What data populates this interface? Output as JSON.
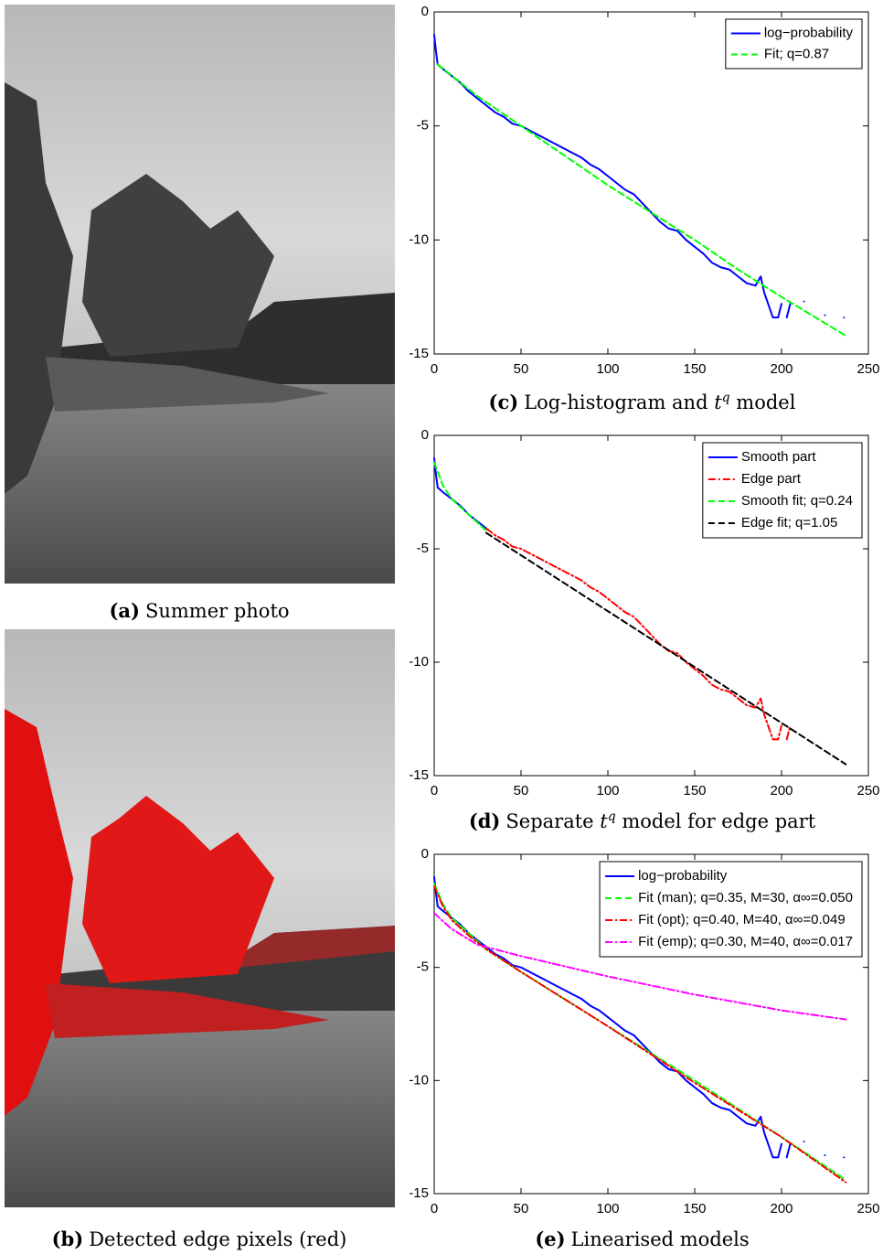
{
  "figures": [
    {
      "label": "(a)",
      "text": "Summer photo"
    },
    {
      "label": "(b)",
      "text": "Detected edge pixels (red)"
    }
  ],
  "chart_data": [
    {
      "type": "line",
      "caption": {
        "label": "(c)",
        "text": "Log-histogram and ",
        "math": "t",
        "sup": "q",
        "rest": " model"
      },
      "xlim": [
        0,
        250
      ],
      "xticks": [
        0,
        50,
        100,
        150,
        200,
        250
      ],
      "ylim": [
        -15,
        0
      ],
      "yticks": [
        -15,
        -10,
        -5,
        0
      ],
      "legend": "northeast",
      "series": [
        {
          "name": "log−probability",
          "color": "#0000ff",
          "linestyle": "solid",
          "x": [
            0,
            1,
            2,
            5,
            10,
            15,
            20,
            25,
            30,
            35,
            40,
            45,
            50,
            55,
            60,
            65,
            70,
            75,
            80,
            85,
            90,
            95,
            100,
            105,
            110,
            115,
            120,
            125,
            130,
            135,
            140,
            145,
            150,
            155,
            160,
            165,
            170,
            175,
            180,
            185,
            188,
            190,
            195,
            198,
            200,
            201,
            203,
            205,
            209,
            213,
            220,
            225,
            230,
            236
          ],
          "values": [
            -1.0,
            -1.7,
            -2.3,
            -2.5,
            -2.8,
            -3.1,
            -3.5,
            -3.8,
            -4.1,
            -4.4,
            -4.6,
            -4.9,
            -5.0,
            -5.2,
            -5.4,
            -5.6,
            -5.8,
            -6.0,
            -6.2,
            -6.4,
            -6.7,
            -6.9,
            -7.2,
            -7.5,
            -7.8,
            -8.0,
            -8.4,
            -8.8,
            -9.2,
            -9.5,
            -9.6,
            -10.0,
            -10.3,
            -10.6,
            -11.0,
            -11.2,
            -11.3,
            -11.6,
            -11.9,
            -12.0,
            -11.6,
            -12.3,
            -13.4,
            -13.4,
            -12.8,
            null,
            -13.4,
            -12.8,
            null,
            -12.7,
            null,
            -13.3,
            null,
            -13.4
          ]
        },
        {
          "name": "Fit; q=0.87",
          "color": "#00ff00",
          "linestyle": "dashed",
          "x": [
            2,
            25,
            50,
            75,
            100,
            125,
            150,
            175,
            200,
            237
          ],
          "values": [
            -2.3,
            -3.7,
            -5.0,
            -6.3,
            -7.6,
            -8.8,
            -10.0,
            -11.3,
            -12.5,
            -14.2
          ]
        }
      ]
    },
    {
      "type": "line",
      "caption": {
        "label": "(d)",
        "text": "Separate ",
        "math": "t",
        "sup": "q",
        "rest": " model for edge part"
      },
      "xlim": [
        0,
        250
      ],
      "xticks": [
        0,
        50,
        100,
        150,
        200,
        250
      ],
      "ylim": [
        -15,
        0
      ],
      "yticks": [
        -15,
        -10,
        -5,
        0
      ],
      "legend": "northeast",
      "series": [
        {
          "name": "Smooth part",
          "color": "#0000ff",
          "linestyle": "solid",
          "x": [
            0,
            1,
            2,
            5,
            10,
            15,
            20,
            25,
            30
          ],
          "values": [
            -1.0,
            -1.7,
            -2.3,
            -2.5,
            -2.8,
            -3.1,
            -3.5,
            -3.8,
            -4.1
          ]
        },
        {
          "name": "Edge part",
          "color": "#ff0000",
          "linestyle": "dashdot",
          "x": [
            30,
            35,
            40,
            45,
            50,
            55,
            60,
            65,
            70,
            75,
            80,
            85,
            90,
            95,
            100,
            105,
            110,
            115,
            120,
            125,
            130,
            135,
            140,
            145,
            150,
            155,
            160,
            165,
            170,
            175,
            180,
            185,
            188,
            190,
            195,
            198,
            200,
            201,
            203,
            205,
            209,
            213,
            220,
            225,
            230,
            236
          ],
          "values": [
            -4.1,
            -4.4,
            -4.6,
            -4.9,
            -5.0,
            -5.2,
            -5.4,
            -5.6,
            -5.8,
            -6.0,
            -6.2,
            -6.4,
            -6.7,
            -6.9,
            -7.2,
            -7.5,
            -7.8,
            -8.0,
            -8.4,
            -8.8,
            -9.2,
            -9.5,
            -9.6,
            -10.0,
            -10.3,
            -10.6,
            -11.0,
            -11.2,
            -11.3,
            -11.6,
            -11.9,
            -12.0,
            -11.6,
            -12.3,
            -13.4,
            -13.4,
            -12.8,
            null,
            -13.4,
            -12.8,
            null,
            -12.7,
            null,
            -13.3,
            null,
            -13.4
          ]
        },
        {
          "name": "Smooth fit; q=0.24",
          "color": "#00ff00",
          "linestyle": "dashed",
          "x": [
            0,
            5,
            10,
            20,
            30
          ],
          "values": [
            -1.2,
            -2.2,
            -2.8,
            -3.5,
            -4.2
          ]
        },
        {
          "name": "Edge fit; q=1.05",
          "color": "#000000",
          "linestyle": "dashed",
          "x": [
            30,
            237
          ],
          "values": [
            -4.3,
            -14.5
          ]
        }
      ]
    },
    {
      "type": "line",
      "caption": {
        "label": "(e)",
        "text": "Linearised models"
      },
      "xlim": [
        0,
        250
      ],
      "xticks": [
        0,
        50,
        100,
        150,
        200,
        250
      ],
      "ylim": [
        -15,
        0
      ],
      "yticks": [
        -15,
        -10,
        -5,
        0
      ],
      "legend": "northeast",
      "series": [
        {
          "name": "log−probability",
          "color": "#0000ff",
          "linestyle": "solid",
          "x": [
            0,
            1,
            2,
            5,
            10,
            15,
            20,
            25,
            30,
            35,
            40,
            45,
            50,
            55,
            60,
            65,
            70,
            75,
            80,
            85,
            90,
            95,
            100,
            105,
            110,
            115,
            120,
            125,
            130,
            135,
            140,
            145,
            150,
            155,
            160,
            165,
            170,
            175,
            180,
            185,
            188,
            190,
            195,
            198,
            200,
            201,
            203,
            205,
            209,
            213,
            220,
            225,
            230,
            236
          ],
          "values": [
            -1.0,
            -1.7,
            -2.3,
            -2.5,
            -2.8,
            -3.1,
            -3.5,
            -3.8,
            -4.1,
            -4.4,
            -4.6,
            -4.9,
            -5.0,
            -5.2,
            -5.4,
            -5.6,
            -5.8,
            -6.0,
            -6.2,
            -6.4,
            -6.7,
            -6.9,
            -7.2,
            -7.5,
            -7.8,
            -8.0,
            -8.4,
            -8.8,
            -9.2,
            -9.5,
            -9.6,
            -10.0,
            -10.3,
            -10.6,
            -11.0,
            -11.2,
            -11.3,
            -11.6,
            -11.9,
            -12.0,
            -11.6,
            -12.3,
            -13.4,
            -13.4,
            -12.8,
            null,
            -13.4,
            -12.8,
            null,
            -12.7,
            null,
            -13.3,
            null,
            -13.4
          ]
        },
        {
          "name": "Fit (man); q=0.35, M=30, α∞=0.050",
          "color": "#00ff00",
          "linestyle": "dashed",
          "x": [
            0,
            5,
            10,
            20,
            30,
            50,
            100,
            150,
            200,
            237
          ],
          "values": [
            -1.3,
            -2.2,
            -2.8,
            -3.5,
            -4.2,
            -5.2,
            -7.6,
            -10.0,
            -12.5,
            -14.4
          ]
        },
        {
          "name": "Fit (opt); q=0.40, M=40, α∞=0.049",
          "color": "#ff0000",
          "linestyle": "dashdot",
          "x": [
            0,
            5,
            10,
            20,
            30,
            50,
            100,
            150,
            200,
            237
          ],
          "values": [
            -1.4,
            -2.3,
            -2.9,
            -3.6,
            -4.2,
            -5.2,
            -7.6,
            -10.1,
            -12.5,
            -14.5
          ]
        },
        {
          "name": "Fit (emp); q=0.30, M=40, α∞=0.017",
          "color": "#ff00ff",
          "linestyle": "dashdot",
          "x": [
            0,
            10,
            25,
            50,
            100,
            150,
            200,
            237
          ],
          "values": [
            -2.6,
            -3.3,
            -4.0,
            -4.5,
            -5.4,
            -6.2,
            -6.9,
            -7.3
          ]
        }
      ]
    }
  ]
}
